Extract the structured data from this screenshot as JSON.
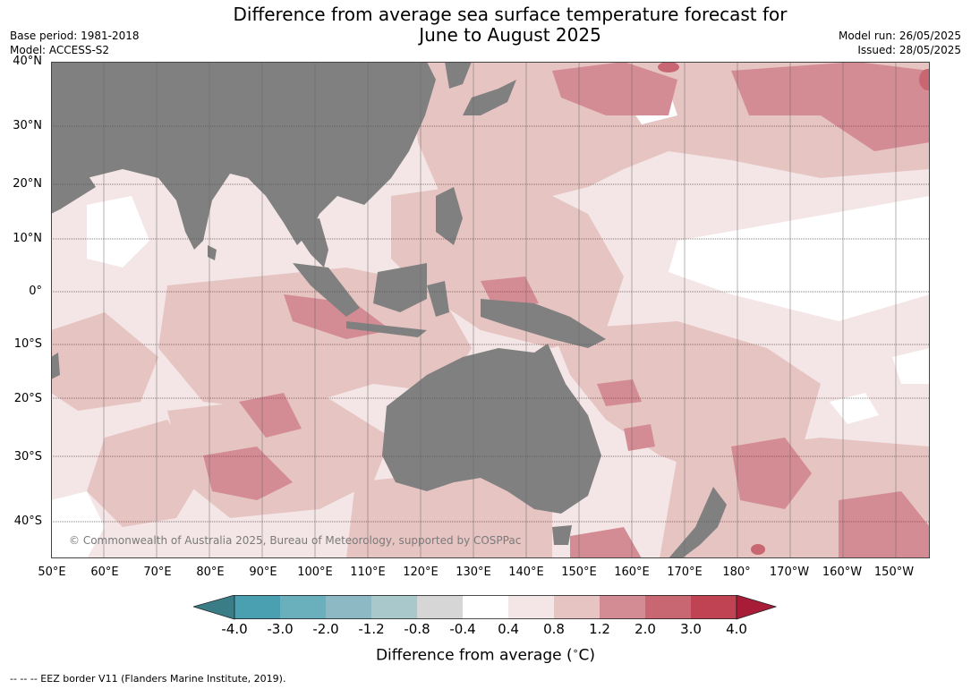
{
  "title": {
    "line1": "Difference from average sea surface temperature forecast for",
    "line2": "June to August 2025"
  },
  "meta_left": {
    "base_period": "Base period: 1981-2018",
    "model": "Model: ACCESS-S2"
  },
  "meta_right": {
    "model_run": "Model run: 26/05/2025",
    "issued": "Issued: 28/05/2025"
  },
  "copyright": "© Commonwealth of Australia 2025, Bureau of Meteorology, supported by COSPPac",
  "lat_labels": [
    "40°N",
    "30°N",
    "20°N",
    "10°N",
    "0°",
    "10°S",
    "20°S",
    "30°S",
    "40°S"
  ],
  "lon_labels": [
    "50°E",
    "60°E",
    "70°E",
    "80°E",
    "90°E",
    "100°E",
    "110°E",
    "120°E",
    "130°E",
    "140°E",
    "150°E",
    "160°E",
    "170°E",
    "180°",
    "170°W",
    "160°W",
    "150°W"
  ],
  "colorbar": {
    "label": "Difference from average (",
    "label_unit": "∘",
    "label_end": "C)",
    "ticks": [
      "-4.0",
      "-3.0",
      "-2.0",
      "-1.2",
      "-0.8",
      "-0.4",
      "0.4",
      "0.8",
      "1.2",
      "2.0",
      "3.0",
      "4.0"
    ],
    "colors": [
      "#3a7d86",
      "#4aa0b0",
      "#6aafbc",
      "#8cb9c4",
      "#a9c8cc",
      "#d6d6d6",
      "#ffffff",
      "#f4e6e6",
      "#e6c4c2",
      "#d48c94",
      "#c86672",
      "#bf4352",
      "#a81c38"
    ]
  },
  "footnote": "-- -- -- EEZ border V11 (Flanders Marine Institute, 2019).",
  "colors": {
    "land": "#808080",
    "anom_0_4_0_8": "#f4e6e6",
    "anom_0_8_1_2": "#e6c4c2",
    "anom_1_2_2_0": "#d48c94",
    "anom_2_0_3_0": "#c86672",
    "anom_neutral": "#ffffff"
  }
}
